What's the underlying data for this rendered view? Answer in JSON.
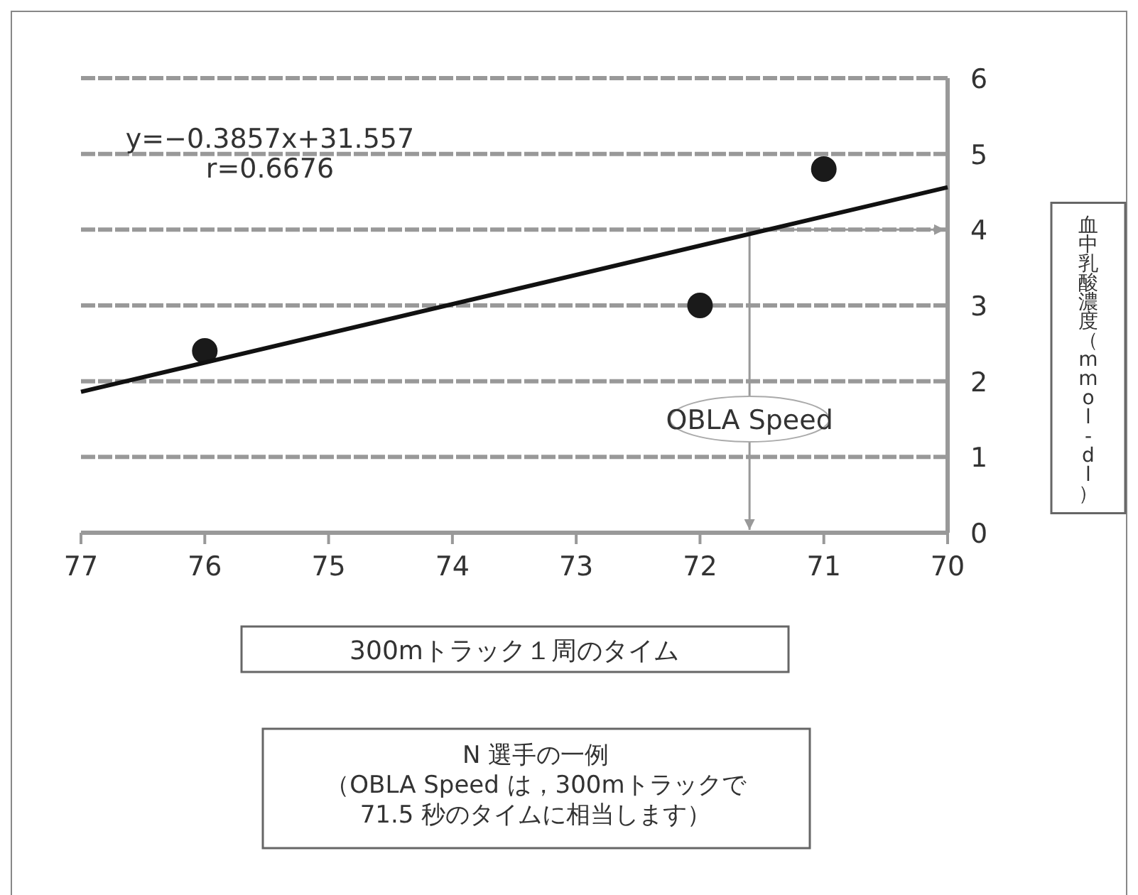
{
  "chart_data": {
    "type": "scatter",
    "xlabel": "300mトラック１周のタイム",
    "ylabel": "血中乳酸濃度（mmol-dl）",
    "xlim": [
      77,
      70
    ],
    "ylim": [
      0,
      6
    ],
    "xticks": [
      77,
      76,
      75,
      74,
      73,
      72,
      71,
      70
    ],
    "yticks": [
      0,
      1,
      2,
      3,
      4,
      5,
      6
    ],
    "grid": "y",
    "series": [
      {
        "x": [
          76,
          72,
          71
        ],
        "values": [
          2.4,
          3.0,
          4.8
        ],
        "color": "#1a1a1a",
        "marker": "circle"
      },
      {
        "type": "line",
        "x": [
          77,
          70
        ],
        "values": [
          1.86,
          4.56
        ],
        "color": "#111111"
      }
    ],
    "ref_lines": [
      {
        "axis": "y",
        "value": 4,
        "color": "#999999"
      },
      {
        "axis": "x",
        "value": 71.6,
        "color": "#999999"
      }
    ],
    "annotations": [
      "y=−0.3857x+31.557",
      "r=0.6676",
      {
        "text": "OBLA Speed",
        "x": 71.6,
        "y": 1.5
      },
      "N 選手の一例",
      "（OBLA Speed は，300mトラックで",
      "71.5 秒のタイムに相当します）"
    ]
  }
}
